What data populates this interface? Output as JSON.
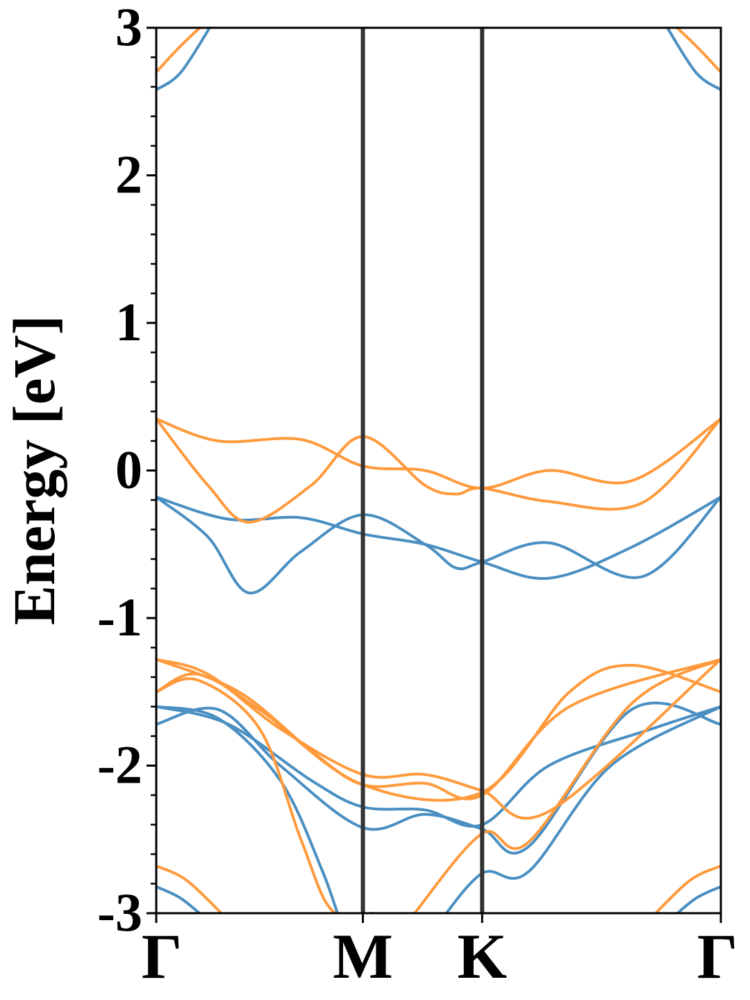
{
  "chart_data": {
    "type": "line",
    "ylabel": "Energy [eV]",
    "ylim": [
      -3,
      3
    ],
    "yticks": [
      "-3",
      "-2",
      "-1",
      "0",
      "1",
      "2",
      "3"
    ],
    "xlim": [
      0,
      2.732
    ],
    "high_symmetry_points": [
      {
        "label": "Γ",
        "x": 0
      },
      {
        "label": "M",
        "x": 1
      },
      {
        "label": "K",
        "x": 1.577
      },
      {
        "label": "Γ",
        "x": 2.732
      }
    ],
    "colors": {
      "blue": "#4a8fc2",
      "orange": "#ff9a3c",
      "frame": "#000000",
      "vline": "#333333"
    },
    "series": [
      {
        "color": "blue",
        "points": [
          [
            0,
            -0.18
          ],
          [
            0.25,
            -0.45
          ],
          [
            0.45,
            -0.83
          ],
          [
            0.7,
            -0.55
          ],
          [
            1,
            -0.3
          ],
          [
            1.3,
            -0.5
          ],
          [
            1.45,
            -0.66
          ],
          [
            1.577,
            -0.62
          ],
          [
            1.9,
            -0.49
          ],
          [
            2.35,
            -0.72
          ],
          [
            2.732,
            -0.18
          ]
        ]
      },
      {
        "color": "blue",
        "points": [
          [
            0,
            -0.18
          ],
          [
            0.35,
            -0.33
          ],
          [
            0.7,
            -0.32
          ],
          [
            1,
            -0.43
          ],
          [
            1.3,
            -0.5
          ],
          [
            1.577,
            -0.62
          ],
          [
            1.9,
            -0.73
          ],
          [
            2.3,
            -0.52
          ],
          [
            2.732,
            -0.18
          ]
        ]
      },
      {
        "color": "orange",
        "points": [
          [
            0,
            0.35
          ],
          [
            0.3,
            0.2
          ],
          [
            0.7,
            0.21
          ],
          [
            1,
            0.03
          ],
          [
            1.3,
            0.0
          ],
          [
            1.577,
            -0.12
          ],
          [
            1.9,
            0.0
          ],
          [
            2.3,
            -0.07
          ],
          [
            2.732,
            0.35
          ]
        ]
      },
      {
        "color": "orange",
        "points": [
          [
            0,
            0.35
          ],
          [
            0.25,
            -0.1
          ],
          [
            0.45,
            -0.35
          ],
          [
            0.75,
            -0.1
          ],
          [
            1,
            0.23
          ],
          [
            1.3,
            -0.1
          ],
          [
            1.45,
            -0.16
          ],
          [
            1.577,
            -0.12
          ],
          [
            1.9,
            -0.21
          ],
          [
            2.35,
            -0.22
          ],
          [
            2.732,
            0.35
          ]
        ]
      },
      {
        "color": "blue",
        "points": [
          [
            0,
            -1.72
          ],
          [
            0.3,
            -1.62
          ],
          [
            0.6,
            -2.0
          ],
          [
            1,
            -2.42
          ],
          [
            1.3,
            -2.33
          ],
          [
            1.577,
            -2.43
          ],
          [
            1.8,
            -2.55
          ],
          [
            2.3,
            -1.62
          ],
          [
            2.732,
            -1.72
          ]
        ]
      },
      {
        "color": "blue",
        "points": [
          [
            0,
            -1.6
          ],
          [
            0.35,
            -1.72
          ],
          [
            0.75,
            -2.1
          ],
          [
            1,
            -2.28
          ],
          [
            1.3,
            -2.3
          ],
          [
            1.577,
            -2.4
          ],
          [
            1.9,
            -2.0
          ],
          [
            2.4,
            -1.75
          ],
          [
            2.732,
            -1.6
          ]
        ]
      },
      {
        "color": "blue",
        "points": [
          [
            0,
            -1.6
          ],
          [
            0.3,
            -1.68
          ],
          [
            0.6,
            -2.1
          ],
          [
            0.8,
            -2.7
          ],
          [
            0.9,
            -3.1
          ]
        ]
      },
      {
        "color": "blue",
        "points": [
          [
            1.35,
            -3.1
          ],
          [
            1.577,
            -2.73
          ],
          [
            1.8,
            -2.72
          ],
          [
            2.2,
            -2.0
          ],
          [
            2.732,
            -1.6
          ]
        ]
      },
      {
        "color": "orange",
        "points": [
          [
            0,
            -1.5
          ],
          [
            0.2,
            -1.42
          ],
          [
            0.5,
            -1.75
          ],
          [
            0.7,
            -2.5
          ],
          [
            0.85,
            -2.98
          ],
          [
            1.05,
            -3.0
          ]
        ]
      },
      {
        "color": "orange",
        "points": [
          [
            1.25,
            -3.0
          ],
          [
            1.577,
            -2.46
          ],
          [
            1.8,
            -2.52
          ],
          [
            2.3,
            -1.58
          ],
          [
            2.732,
            -1.28
          ]
        ]
      },
      {
        "color": "orange",
        "points": [
          [
            0,
            -1.28
          ],
          [
            0.25,
            -1.38
          ],
          [
            0.6,
            -1.75
          ],
          [
            1,
            -2.06
          ],
          [
            1.3,
            -2.06
          ],
          [
            1.577,
            -2.17
          ],
          [
            1.9,
            -2.31
          ],
          [
            2.732,
            -1.28
          ]
        ]
      },
      {
        "color": "orange",
        "points": [
          [
            0,
            -1.28
          ],
          [
            0.4,
            -1.5
          ],
          [
            0.75,
            -1.9
          ],
          [
            1,
            -2.13
          ],
          [
            1.3,
            -2.12
          ],
          [
            1.577,
            -2.2
          ],
          [
            2.0,
            -1.6
          ],
          [
            2.732,
            -1.28
          ]
        ]
      },
      {
        "color": "orange",
        "points": [
          [
            0,
            -1.5
          ],
          [
            0.2,
            -1.38
          ],
          [
            0.5,
            -1.62
          ],
          [
            1,
            -2.13
          ],
          [
            1.577,
            -2.18
          ],
          [
            2.0,
            -1.5
          ],
          [
            2.3,
            -1.32
          ],
          [
            2.732,
            -1.5
          ]
        ]
      },
      {
        "color": "orange",
        "points": [
          [
            0,
            2.7
          ],
          [
            0.12,
            2.88
          ],
          [
            0.25,
            3.05
          ]
        ]
      },
      {
        "color": "blue",
        "points": [
          [
            0,
            2.58
          ],
          [
            0.12,
            2.7
          ],
          [
            0.28,
            3.05
          ]
        ]
      },
      {
        "color": "orange",
        "points": [
          [
            2.482,
            3.05
          ],
          [
            2.61,
            2.88
          ],
          [
            2.732,
            2.7
          ]
        ]
      },
      {
        "color": "blue",
        "points": [
          [
            2.452,
            3.05
          ],
          [
            2.61,
            2.7
          ],
          [
            2.732,
            2.58
          ]
        ]
      },
      {
        "color": "orange",
        "points": [
          [
            0,
            -2.68
          ],
          [
            0.15,
            -2.78
          ],
          [
            0.35,
            -3.05
          ]
        ]
      },
      {
        "color": "blue",
        "points": [
          [
            0,
            -2.82
          ],
          [
            0.12,
            -2.9
          ],
          [
            0.25,
            -3.05
          ]
        ]
      },
      {
        "color": "orange",
        "points": [
          [
            2.382,
            -3.05
          ],
          [
            2.58,
            -2.78
          ],
          [
            2.732,
            -2.68
          ]
        ]
      },
      {
        "color": "blue",
        "points": [
          [
            2.482,
            -3.05
          ],
          [
            2.61,
            -2.9
          ],
          [
            2.732,
            -2.82
          ]
        ]
      }
    ]
  }
}
